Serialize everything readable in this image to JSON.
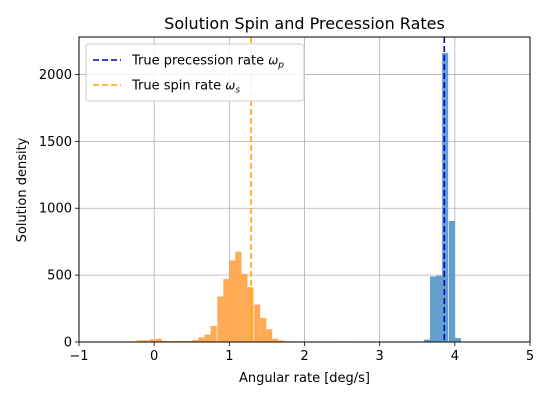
{
  "chart_data": {
    "type": "bar",
    "title": "Solution Spin and Precession Rates",
    "xlabel": "Angular rate [deg/s]",
    "ylabel": "Solution density",
    "xlim": [
      -1,
      5
    ],
    "ylim": [
      0,
      2280
    ],
    "xticks": [
      "−1",
      "0",
      "1",
      "2",
      "3",
      "4",
      "5"
    ],
    "yticks": [
      "0",
      "500",
      "1000",
      "1500",
      "2000"
    ],
    "grid": true,
    "legend_position": "top-left",
    "series": [
      {
        "name": "precession",
        "color": "#5b9ac9",
        "bin_width": 0.0816,
        "bins": [
          {
            "x0": 3.59,
            "value": 18
          },
          {
            "x0": 3.67,
            "value": 490
          },
          {
            "x0": 3.75,
            "value": 495
          },
          {
            "x0": 3.83,
            "value": 2160
          },
          {
            "x0": 3.92,
            "value": 905
          },
          {
            "x0": 4.0,
            "value": 30
          }
        ]
      },
      {
        "name": "spin",
        "color": "#ffa64d",
        "bin_width": 0.0816,
        "bins": [
          {
            "x0": -0.63,
            "value": 2
          },
          {
            "x0": -0.55,
            "value": 3
          },
          {
            "x0": -0.47,
            "value": 3
          },
          {
            "x0": -0.39,
            "value": 2
          },
          {
            "x0": -0.31,
            "value": 5
          },
          {
            "x0": -0.23,
            "value": 12
          },
          {
            "x0": -0.15,
            "value": 12
          },
          {
            "x0": -0.06,
            "value": 20
          },
          {
            "x0": 0.02,
            "value": 25
          },
          {
            "x0": 0.1,
            "value": 8
          },
          {
            "x0": 0.18,
            "value": 6
          },
          {
            "x0": 0.26,
            "value": 8
          },
          {
            "x0": 0.35,
            "value": 8
          },
          {
            "x0": 0.43,
            "value": 8
          },
          {
            "x0": 0.51,
            "value": 15
          },
          {
            "x0": 0.59,
            "value": 35
          },
          {
            "x0": 0.67,
            "value": 55
          },
          {
            "x0": 0.75,
            "value": 120
          },
          {
            "x0": 0.84,
            "value": 340
          },
          {
            "x0": 0.92,
            "value": 470
          },
          {
            "x0": 1.0,
            "value": 610
          },
          {
            "x0": 1.08,
            "value": 675
          },
          {
            "x0": 1.16,
            "value": 510
          },
          {
            "x0": 1.24,
            "value": 410
          },
          {
            "x0": 1.33,
            "value": 280
          },
          {
            "x0": 1.41,
            "value": 180
          },
          {
            "x0": 1.49,
            "value": 95
          },
          {
            "x0": 1.57,
            "value": 25
          },
          {
            "x0": 1.65,
            "value": 12
          },
          {
            "x0": 1.73,
            "value": 6
          },
          {
            "x0": 1.82,
            "value": 5
          },
          {
            "x0": 1.9,
            "value": 3
          },
          {
            "x0": 2.06,
            "value": 2
          },
          {
            "x0": 2.14,
            "value": 2
          },
          {
            "x0": 2.38,
            "value": 2
          },
          {
            "x0": 2.46,
            "value": 5
          }
        ]
      }
    ],
    "reference_lines": [
      {
        "name": "True precession rate",
        "symbol": "ω",
        "subscript": "p",
        "x": 3.86,
        "color": "#0000cc"
      },
      {
        "name": "True spin rate",
        "symbol": "ω",
        "subscript": "s",
        "x": 1.29,
        "color": "#ffa500"
      }
    ]
  }
}
